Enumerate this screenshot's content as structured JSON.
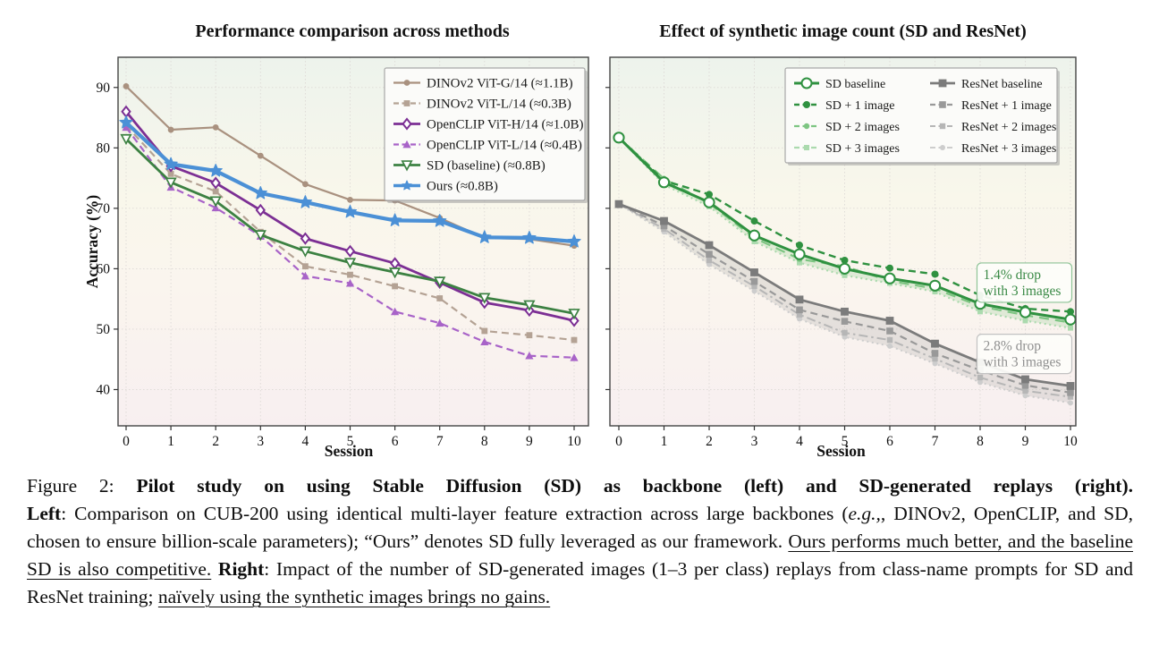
{
  "figure": {
    "left_title": "Performance comparison across methods",
    "right_title": "Effect of synthetic image count (SD and ResNet)"
  },
  "chart_data": [
    {
      "type": "line",
      "name": "performance-comparison",
      "title": "Performance comparison across methods",
      "xlabel": "Session",
      "ylabel": "Accuracy (%)",
      "x": [
        0,
        1,
        2,
        3,
        4,
        5,
        6,
        7,
        8,
        9,
        10
      ],
      "xticks": [
        0,
        1,
        2,
        3,
        4,
        5,
        6,
        7,
        8,
        9,
        10
      ],
      "yticks": [
        40,
        50,
        60,
        70,
        80,
        90
      ],
      "ylim": [
        34,
        95
      ],
      "grid": true,
      "show_ytick_labels": true,
      "legend_position": "upper right",
      "legend_columns": 1,
      "plot_bg_gradient": [
        "#edf3ec",
        "#f9f7eb",
        "#faf5ee",
        "#f8eff0"
      ],
      "series": [
        {
          "name": "DINOv2 ViT-G/14 (≈1.1B)",
          "color": "#a9917f",
          "dash": "solid",
          "marker": "circle",
          "msize": 3.4,
          "lw": 2.2,
          "z": 4,
          "values": [
            90.2,
            83.0,
            83.4,
            78.7,
            74.0,
            71.4,
            71.3,
            68.4,
            65.1,
            64.9,
            63.8
          ]
        },
        {
          "name": "DINOv2 ViT-L/14 (≈0.3B)",
          "color": "#b4a294",
          "dash": "dashed",
          "marker": "square",
          "msize": 3.4,
          "lw": 2.2,
          "z": 1,
          "values": [
            83.7,
            75.7,
            72.8,
            66.1,
            60.4,
            59.0,
            57.1,
            55.1,
            49.7,
            49.0,
            48.2
          ]
        },
        {
          "name": "OpenCLIP ViT-H/14 (≈1.0B)",
          "color": "#7c2f94",
          "dash": "solid",
          "marker": "diamond-open",
          "msize": 5.5,
          "lw": 2.8,
          "z": 5,
          "values": [
            86.0,
            77.0,
            74.2,
            69.7,
            65.0,
            62.9,
            60.9,
            57.7,
            54.4,
            53.1,
            51.4
          ]
        },
        {
          "name": "OpenCLIP ViT-L/14 (≈0.4B)",
          "color": "#a863c8",
          "dash": "dashed",
          "marker": "triangle",
          "msize": 4.6,
          "lw": 2.2,
          "z": 2,
          "values": [
            83.4,
            73.5,
            70.1,
            65.4,
            58.8,
            57.6,
            52.9,
            51.0,
            47.9,
            45.6,
            45.3
          ]
        },
        {
          "name": "SD (baseline) (≈0.8B)",
          "color": "#3c8142",
          "dash": "solid",
          "marker": "triangle-down-open",
          "msize": 5.2,
          "lw": 2.8,
          "z": 6,
          "values": [
            81.5,
            74.3,
            71.2,
            65.6,
            62.9,
            61.0,
            59.4,
            57.9,
            55.2,
            54.0,
            52.6
          ]
        },
        {
          "name": "Ours (≈0.8B)",
          "color": "#4b90d6",
          "dash": "solid",
          "marker": "star",
          "msize": 7.5,
          "lw": 4.2,
          "z": 7,
          "values": [
            84.2,
            77.3,
            76.2,
            72.5,
            71.0,
            69.4,
            68.0,
            67.9,
            65.2,
            65.1,
            64.5
          ]
        }
      ]
    },
    {
      "type": "line",
      "name": "synthetic-image-count",
      "title": "Effect of synthetic image count (SD and ResNet)",
      "xlabel": "Session",
      "ylabel": "",
      "x": [
        0,
        1,
        2,
        3,
        4,
        5,
        6,
        7,
        8,
        9,
        10
      ],
      "xticks": [
        0,
        1,
        2,
        3,
        4,
        5,
        6,
        7,
        8,
        9,
        10
      ],
      "yticks": [
        40,
        50,
        60,
        70,
        80,
        90
      ],
      "ylim": [
        34,
        95
      ],
      "grid": true,
      "show_ytick_labels": false,
      "legend_position": "upper right",
      "legend_columns": 2,
      "plot_bg_gradient": [
        "#edf3ec",
        "#f9f7eb",
        "#faf5ee",
        "#f8eff0"
      ],
      "series": [
        {
          "name": "SD baseline",
          "color": "#2f9140",
          "dash": "solid",
          "marker": "circle-open",
          "msize": 5.6,
          "lw": 3.0,
          "z": 8,
          "values": [
            81.7,
            74.3,
            71.0,
            65.5,
            62.4,
            60.0,
            58.4,
            57.2,
            54.2,
            52.8,
            51.6
          ]
        },
        {
          "name": "SD + 1 image",
          "color": "#2f9140",
          "dash": "dashed",
          "marker": "circle",
          "msize": 4.0,
          "lw": 2.4,
          "z": 7,
          "values": [
            81.7,
            74.6,
            72.3,
            67.9,
            63.9,
            61.4,
            60.1,
            59.1,
            55.6,
            53.4,
            52.9
          ]
        },
        {
          "name": "SD + 2 images",
          "color": "#7dc582",
          "dash": "dash",
          "marker": "circle",
          "msize": 3.2,
          "lw": 2.2,
          "z": 6,
          "values": [
            81.7,
            74.9,
            70.8,
            65.1,
            61.6,
            60.4,
            58.0,
            56.7,
            53.8,
            52.3,
            51.1
          ]
        },
        {
          "name": "SD + 3 images",
          "color": "#abdaae",
          "dash": "dotted",
          "marker": "square",
          "msize": 3.0,
          "lw": 2.2,
          "z": 5,
          "values": [
            81.7,
            73.9,
            70.3,
            64.5,
            61.0,
            58.9,
            57.6,
            56.2,
            52.9,
            51.4,
            50.2
          ]
        },
        {
          "name": "ResNet baseline",
          "color": "#7b7b7b",
          "dash": "solid",
          "marker": "square",
          "msize": 4.4,
          "lw": 2.8,
          "z": 4,
          "values": [
            70.7,
            67.9,
            63.9,
            59.4,
            54.9,
            52.9,
            51.4,
            47.6,
            44.5,
            41.7,
            40.6
          ]
        },
        {
          "name": "ResNet + 1 image",
          "color": "#999999",
          "dash": "dashed",
          "marker": "square",
          "msize": 3.8,
          "lw": 2.2,
          "z": 3,
          "values": [
            70.7,
            67.1,
            62.4,
            57.9,
            53.2,
            51.3,
            49.7,
            46.0,
            43.2,
            40.7,
            39.5
          ]
        },
        {
          "name": "ResNet + 2 images",
          "color": "#b6b6b6",
          "dash": "dashdot",
          "marker": "square",
          "msize": 3.2,
          "lw": 2.0,
          "z": 2,
          "values": [
            70.7,
            66.6,
            61.4,
            57.1,
            52.4,
            49.4,
            48.2,
            45.1,
            42.0,
            39.8,
            38.8
          ]
        },
        {
          "name": "ResNet + 3 images",
          "color": "#cdcdcd",
          "dash": "dotted",
          "marker": "circle",
          "msize": 3.0,
          "lw": 2.0,
          "z": 1,
          "values": [
            70.7,
            66.1,
            60.7,
            56.3,
            51.7,
            48.7,
            47.2,
            44.3,
            41.2,
            39.0,
            37.8
          ]
        }
      ],
      "bands": [
        {
          "upper": "SD baseline",
          "lower": "SD + 3 images",
          "color": "#4caf50",
          "opacity": 0.15
        },
        {
          "upper": "ResNet baseline",
          "lower": "ResNet + 3 images",
          "color": "#9a9a9a",
          "opacity": 0.22
        }
      ],
      "annotations": [
        {
          "lines": [
            "1.4% drop",
            "with 3 images"
          ],
          "x": 8.98,
          "y": 57.7,
          "color": "#3a8a46",
          "border": "#8fc497"
        },
        {
          "lines": [
            "2.8% drop",
            "with 3 images"
          ],
          "x": 8.98,
          "y": 45.9,
          "color": "#8f8f8f",
          "border": "#c2c2c2"
        }
      ]
    }
  ],
  "caption": {
    "blocks": [
      {
        "flush": true,
        "parts": [
          {
            "text": "Figure 2: ",
            "style": "normal"
          },
          {
            "text": "Pilot study on using Stable Diffusion (SD) as backbone (left) and SD-generated replays (right).",
            "style": "bold"
          }
        ]
      },
      {
        "flush": false,
        "parts": [
          {
            "text": "Left",
            "style": "bold"
          },
          {
            "text": ": Comparison on CUB-200 using identical multi-layer feature extraction across large backbones (",
            "style": "normal"
          },
          {
            "text": "e.g.,",
            "style": "italic"
          },
          {
            "text": ", DINOv2, OpenCLIP, and SD, chosen to ensure billion-scale parameters); “Ours” denotes SD fully leveraged as our framework. ",
            "style": "normal"
          },
          {
            "text": "Ours performs much better, and the baseline SD is also competitive.",
            "style": "underline"
          },
          {
            "text": " ",
            "style": "normal"
          },
          {
            "text": "Right",
            "style": "bold"
          },
          {
            "text": ": Impact of the number of SD-generated images (1–3 per class) replays from class-name prompts for SD and ResNet training; ",
            "style": "normal"
          },
          {
            "text": "naïvely using the synthetic images brings no gains.",
            "style": "underline"
          }
        ]
      }
    ]
  }
}
